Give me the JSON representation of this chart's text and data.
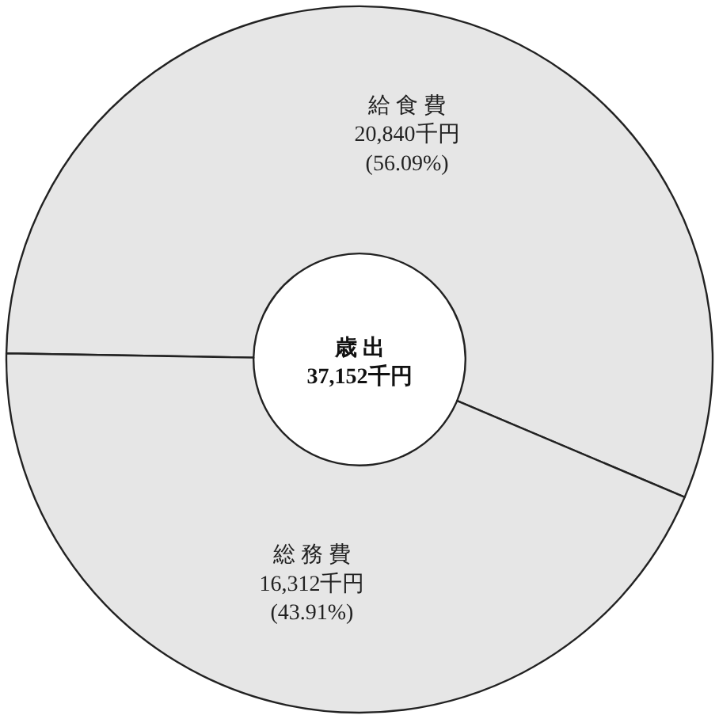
{
  "chart_data": {
    "type": "donut",
    "title": "歳 出",
    "annotations": [
      "37,152千円"
    ],
    "categories": [
      "給 食 費",
      "総 務 費"
    ],
    "values": [
      20840,
      16312
    ],
    "value_labels": [
      "20,840千円 (56.09%)",
      "16,312千円 (43.91%)"
    ],
    "colors": [
      "#e6e6e6",
      "#e6e6e6"
    ]
  }
}
